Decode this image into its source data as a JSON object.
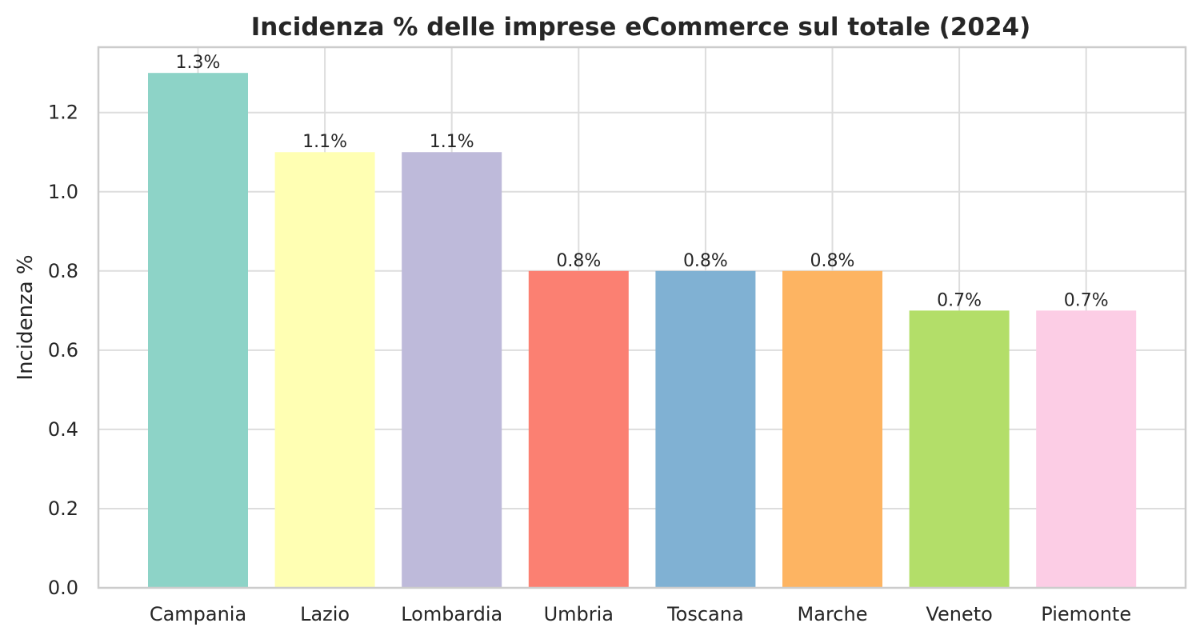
{
  "chart_data": {
    "type": "bar",
    "title": "Incidenza % delle imprese eCommerce sul totale (2024)",
    "xlabel": "",
    "ylabel": "Incidenza %",
    "categories": [
      "Campania",
      "Lazio",
      "Lombardia",
      "Umbria",
      "Toscana",
      "Marche",
      "Veneto",
      "Piemonte"
    ],
    "values": [
      1.3,
      1.1,
      1.1,
      0.8,
      0.8,
      0.8,
      0.7,
      0.7
    ],
    "data_labels": [
      "1.3%",
      "1.1%",
      "1.1%",
      "0.8%",
      "0.8%",
      "0.8%",
      "0.7%",
      "0.7%"
    ],
    "colors": [
      "#8dd3c7",
      "#ffffb3",
      "#bebada",
      "#fb8072",
      "#80b1d3",
      "#fdb462",
      "#b3de69",
      "#fccde5"
    ],
    "yticks": [
      0.0,
      0.2,
      0.4,
      0.6,
      0.8,
      1.0,
      1.2
    ],
    "ytick_labels": [
      "0.0",
      "0.2",
      "0.4",
      "0.6",
      "0.8",
      "1.0",
      "1.2"
    ],
    "ylim": [
      0,
      1.365
    ],
    "grid": true,
    "legend": "none"
  }
}
